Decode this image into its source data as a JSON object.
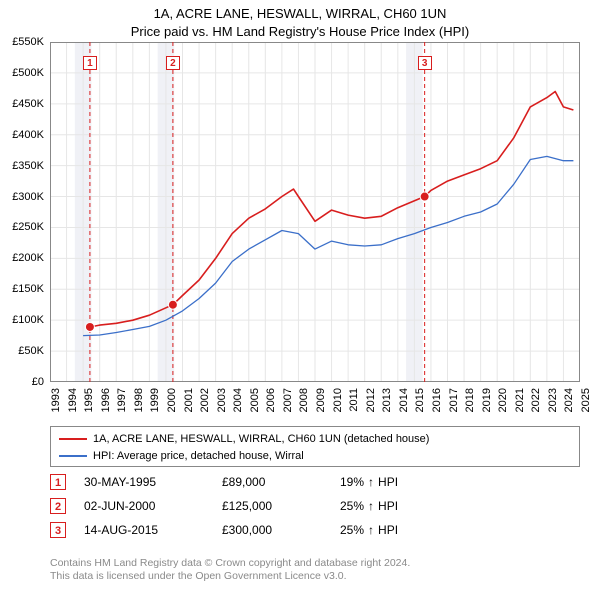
{
  "title": "1A, ACRE LANE, HESWALL, WIRRAL, CH60 1UN",
  "subtitle": "Price paid vs. HM Land Registry's House Price Index (HPI)",
  "chart": {
    "type": "line",
    "background_color": "#ffffff",
    "grid_color": "#e6e6e6",
    "axis_color": "#888888",
    "label_fontsize": 11,
    "x": {
      "min": 1993,
      "max": 2025,
      "ticks": [
        1993,
        1994,
        1995,
        1996,
        1997,
        1998,
        1999,
        2000,
        2001,
        2002,
        2003,
        2004,
        2005,
        2006,
        2007,
        2008,
        2009,
        2010,
        2011,
        2012,
        2013,
        2014,
        2015,
        2016,
        2017,
        2018,
        2019,
        2020,
        2021,
        2022,
        2023,
        2024,
        2025
      ]
    },
    "y": {
      "min": 0,
      "max": 550000,
      "ticks": [
        0,
        50000,
        100000,
        150000,
        200000,
        250000,
        300000,
        350000,
        400000,
        450000,
        500000,
        550000
      ],
      "tick_labels": [
        "£0",
        "£50K",
        "£100K",
        "£150K",
        "£200K",
        "£250K",
        "£300K",
        "£350K",
        "£400K",
        "£450K",
        "£500K",
        "£550K"
      ]
    },
    "shaded_bands": [
      {
        "from": 1994.5,
        "to": 1995.5,
        "color": "#f0f1f6"
      },
      {
        "from": 1999.5,
        "to": 2000.5,
        "color": "#f0f1f6"
      },
      {
        "from": 2014.5,
        "to": 2015.5,
        "color": "#f0f1f6"
      }
    ],
    "series": [
      {
        "id": "property",
        "label": "1A, ACRE LANE, HESWALL, WIRRAL, CH60 1UN (detached house)",
        "color": "#d81e1e",
        "line_width": 1.6,
        "data": [
          [
            1995.41,
            89000
          ],
          [
            1996,
            92000
          ],
          [
            1997,
            95000
          ],
          [
            1998,
            100000
          ],
          [
            1999,
            108000
          ],
          [
            2000.42,
            125000
          ],
          [
            2001,
            140000
          ],
          [
            2002,
            165000
          ],
          [
            2003,
            200000
          ],
          [
            2004,
            240000
          ],
          [
            2005,
            265000
          ],
          [
            2006,
            280000
          ],
          [
            2007,
            300000
          ],
          [
            2007.7,
            312000
          ],
          [
            2008,
            300000
          ],
          [
            2009,
            260000
          ],
          [
            2010,
            278000
          ],
          [
            2011,
            270000
          ],
          [
            2012,
            265000
          ],
          [
            2013,
            268000
          ],
          [
            2014,
            282000
          ],
          [
            2015.62,
            300000
          ],
          [
            2016,
            310000
          ],
          [
            2017,
            325000
          ],
          [
            2018,
            335000
          ],
          [
            2019,
            345000
          ],
          [
            2020,
            358000
          ],
          [
            2021,
            395000
          ],
          [
            2022,
            445000
          ],
          [
            2023,
            460000
          ],
          [
            2023.5,
            470000
          ],
          [
            2024,
            445000
          ],
          [
            2024.6,
            440000
          ]
        ],
        "markers": [
          {
            "n": "1",
            "x": 1995.41,
            "y": 89000
          },
          {
            "n": "2",
            "x": 2000.42,
            "y": 125000
          },
          {
            "n": "3",
            "x": 2015.62,
            "y": 300000
          }
        ]
      },
      {
        "id": "hpi",
        "label": "HPI: Average price, detached house, Wirral",
        "color": "#3b6fc9",
        "line_width": 1.3,
        "data": [
          [
            1995,
            75000
          ],
          [
            1996,
            76000
          ],
          [
            1997,
            80000
          ],
          [
            1998,
            85000
          ],
          [
            1999,
            90000
          ],
          [
            2000,
            100000
          ],
          [
            2001,
            115000
          ],
          [
            2002,
            135000
          ],
          [
            2003,
            160000
          ],
          [
            2004,
            195000
          ],
          [
            2005,
            215000
          ],
          [
            2006,
            230000
          ],
          [
            2007,
            245000
          ],
          [
            2008,
            240000
          ],
          [
            2009,
            215000
          ],
          [
            2010,
            228000
          ],
          [
            2011,
            222000
          ],
          [
            2012,
            220000
          ],
          [
            2013,
            222000
          ],
          [
            2014,
            232000
          ],
          [
            2015,
            240000
          ],
          [
            2016,
            250000
          ],
          [
            2017,
            258000
          ],
          [
            2018,
            268000
          ],
          [
            2019,
            275000
          ],
          [
            2020,
            288000
          ],
          [
            2021,
            320000
          ],
          [
            2022,
            360000
          ],
          [
            2023,
            365000
          ],
          [
            2024,
            358000
          ],
          [
            2024.6,
            358000
          ]
        ]
      }
    ],
    "marker_style": {
      "radius": 4,
      "fill": "#d81e1e",
      "stroke": "#ffffff"
    },
    "vertical_marker_lines": {
      "color": "#d81e1e",
      "dash": "4,3",
      "width": 1
    }
  },
  "legend": {
    "items": [
      {
        "color": "#d81e1e",
        "label": "1A, ACRE LANE, HESWALL, WIRRAL, CH60 1UN (detached house)"
      },
      {
        "color": "#3b6fc9",
        "label": "HPI: Average price, detached house, Wirral"
      }
    ]
  },
  "sales": [
    {
      "n": "1",
      "date": "30-MAY-1995",
      "price": "£89,000",
      "hpi_pct": "19%",
      "arrow": "↑",
      "hpi_label": "HPI"
    },
    {
      "n": "2",
      "date": "02-JUN-2000",
      "price": "£125,000",
      "hpi_pct": "25%",
      "arrow": "↑",
      "hpi_label": "HPI"
    },
    {
      "n": "3",
      "date": "14-AUG-2015",
      "price": "£300,000",
      "hpi_pct": "25%",
      "arrow": "↑",
      "hpi_label": "HPI"
    }
  ],
  "footer": {
    "line1": "Contains HM Land Registry data © Crown copyright and database right 2024.",
    "line2": "This data is licensed under the Open Government Licence v3.0."
  }
}
